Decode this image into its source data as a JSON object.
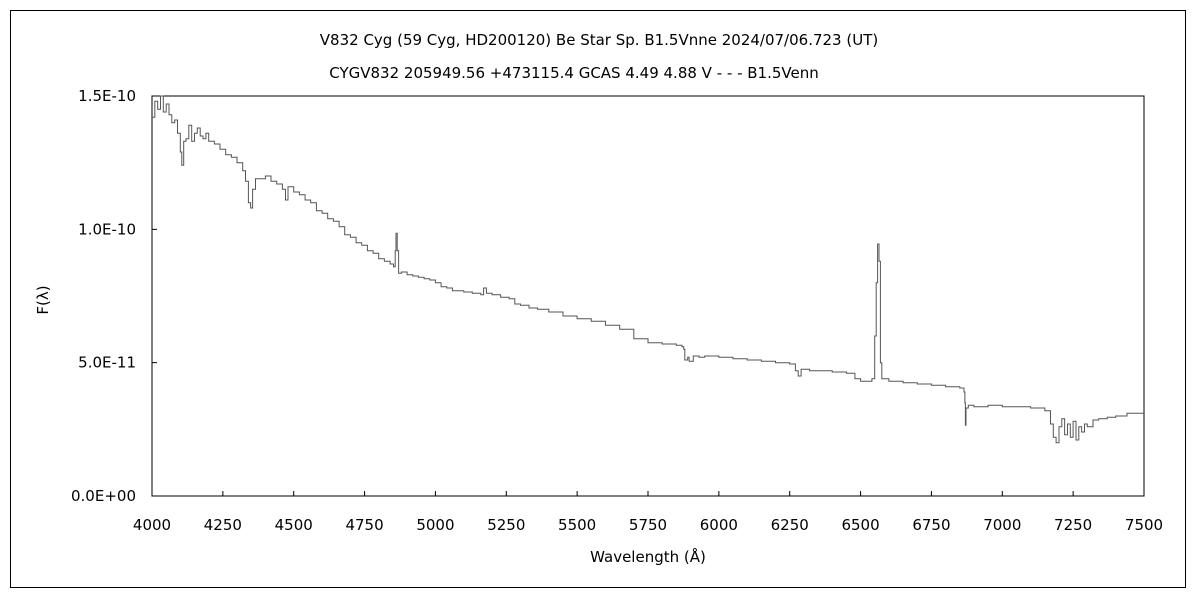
{
  "chart_data": {
    "type": "line",
    "title": "V832 Cyg (59 Cyg, HD200120)    Be Star    Sp. B1.5Vnne    2024/07/06.723 (UT)",
    "subtitle": "CYGV832 205949.56 +473115.4 GCAS 4.49 4.88 V - - - B1.5Venn",
    "xlabel": "Wavelength (Å)",
    "ylabel": "F(λ)",
    "xlim": [
      4000,
      7500
    ],
    "ylim": [
      0,
      1.5e-10
    ],
    "grid": false,
    "x_tick_labels": [
      "4000",
      "4250",
      "4500",
      "4750",
      "5000",
      "5250",
      "5500",
      "5750",
      "6000",
      "6250",
      "6500",
      "6750",
      "7000",
      "7250",
      "7500"
    ],
    "y_tick_labels": [
      "0.0E+00",
      "5.0E-11",
      "1.0E-10",
      "1.5E-10"
    ],
    "series_color": "#555555",
    "series": [
      {
        "points": [
          [
            4000,
            1.42e-10
          ],
          [
            4010,
            1.48e-10
          ],
          [
            4020,
            1.45e-10
          ],
          [
            4030,
            1.5e-10
          ],
          [
            4040,
            1.44e-10
          ],
          [
            4050,
            1.47e-10
          ],
          [
            4060,
            1.43e-10
          ],
          [
            4070,
            1.4e-10
          ],
          [
            4080,
            1.41e-10
          ],
          [
            4090,
            1.36e-10
          ],
          [
            4100,
            1.29e-10
          ],
          [
            4105,
            1.24e-10
          ],
          [
            4112,
            1.33e-10
          ],
          [
            4120,
            1.34e-10
          ],
          [
            4130,
            1.39e-10
          ],
          [
            4140,
            1.33e-10
          ],
          [
            4150,
            1.36e-10
          ],
          [
            4160,
            1.38e-10
          ],
          [
            4170,
            1.35e-10
          ],
          [
            4180,
            1.34e-10
          ],
          [
            4190,
            1.36e-10
          ],
          [
            4200,
            1.33e-10
          ],
          [
            4220,
            1.32e-10
          ],
          [
            4240,
            1.3e-10
          ],
          [
            4260,
            1.28e-10
          ],
          [
            4280,
            1.27e-10
          ],
          [
            4300,
            1.25e-10
          ],
          [
            4320,
            1.22e-10
          ],
          [
            4330,
            1.18e-10
          ],
          [
            4340,
            1.1e-10
          ],
          [
            4348,
            1.08e-10
          ],
          [
            4355,
            1.15e-10
          ],
          [
            4365,
            1.19e-10
          ],
          [
            4380,
            1.19e-10
          ],
          [
            4400,
            1.2e-10
          ],
          [
            4420,
            1.18e-10
          ],
          [
            4440,
            1.17e-10
          ],
          [
            4460,
            1.15e-10
          ],
          [
            4471,
            1.11e-10
          ],
          [
            4480,
            1.16e-10
          ],
          [
            4500,
            1.14e-10
          ],
          [
            4520,
            1.13e-10
          ],
          [
            4540,
            1.11e-10
          ],
          [
            4560,
            1.1e-10
          ],
          [
            4580,
            1.07e-10
          ],
          [
            4600,
            1.06e-10
          ],
          [
            4620,
            1.04e-10
          ],
          [
            4640,
            1.03e-10
          ],
          [
            4660,
            1.01e-10
          ],
          [
            4680,
            9.8e-11
          ],
          [
            4700,
            9.7e-11
          ],
          [
            4720,
            9.5e-11
          ],
          [
            4740,
            9.4e-11
          ],
          [
            4760,
            9.2e-11
          ],
          [
            4780,
            9.1e-11
          ],
          [
            4800,
            8.9e-11
          ],
          [
            4820,
            8.8e-11
          ],
          [
            4840,
            8.7e-11
          ],
          [
            4852,
            8.6e-11
          ],
          [
            4858,
            9.2e-11
          ],
          [
            4861,
            9.85e-11
          ],
          [
            4865,
            9.2e-11
          ],
          [
            4870,
            8.35e-11
          ],
          [
            4880,
            8.4e-11
          ],
          [
            4900,
            8.3e-11
          ],
          [
            4920,
            8.25e-11
          ],
          [
            4940,
            8.2e-11
          ],
          [
            4960,
            8.15e-11
          ],
          [
            4980,
            8.1e-11
          ],
          [
            5000,
            8e-11
          ],
          [
            5020,
            7.85e-11
          ],
          [
            5040,
            7.8e-11
          ],
          [
            5060,
            7.7e-11
          ],
          [
            5080,
            7.7e-11
          ],
          [
            5100,
            7.65e-11
          ],
          [
            5130,
            7.6e-11
          ],
          [
            5160,
            7.55e-11
          ],
          [
            5170,
            7.8e-11
          ],
          [
            5180,
            7.6e-11
          ],
          [
            5200,
            7.55e-11
          ],
          [
            5230,
            7.45e-11
          ],
          [
            5260,
            7.4e-11
          ],
          [
            5280,
            7.2e-11
          ],
          [
            5300,
            7.15e-11
          ],
          [
            5330,
            7.05e-11
          ],
          [
            5360,
            7e-11
          ],
          [
            5400,
            6.9e-11
          ],
          [
            5450,
            6.75e-11
          ],
          [
            5500,
            6.65e-11
          ],
          [
            5550,
            6.55e-11
          ],
          [
            5600,
            6.4e-11
          ],
          [
            5650,
            6.25e-11
          ],
          [
            5700,
            5.9e-11
          ],
          [
            5750,
            5.75e-11
          ],
          [
            5800,
            5.7e-11
          ],
          [
            5850,
            5.65e-11
          ],
          [
            5870,
            5.6e-11
          ],
          [
            5876,
            5.5e-11
          ],
          [
            5880,
            5.1e-11
          ],
          [
            5890,
            5.2e-11
          ],
          [
            5895,
            5.05e-11
          ],
          [
            5910,
            5.25e-11
          ],
          [
            5930,
            5.2e-11
          ],
          [
            5950,
            5.25e-11
          ],
          [
            6000,
            5.2e-11
          ],
          [
            6050,
            5.15e-11
          ],
          [
            6100,
            5.1e-11
          ],
          [
            6150,
            5.05e-11
          ],
          [
            6200,
            5e-11
          ],
          [
            6250,
            4.95e-11
          ],
          [
            6270,
            4.7e-11
          ],
          [
            6280,
            4.5e-11
          ],
          [
            6290,
            4.75e-11
          ],
          [
            6320,
            4.7e-11
          ],
          [
            6350,
            4.7e-11
          ],
          [
            6400,
            4.65e-11
          ],
          [
            6450,
            4.6e-11
          ],
          [
            6480,
            4.4e-11
          ],
          [
            6500,
            4.3e-11
          ],
          [
            6520,
            4.3e-11
          ],
          [
            6540,
            4.4e-11
          ],
          [
            6550,
            6e-11
          ],
          [
            6555,
            8e-11
          ],
          [
            6560,
            9.45e-11
          ],
          [
            6565,
            8.8e-11
          ],
          [
            6570,
            5e-11
          ],
          [
            6575,
            4.4e-11
          ],
          [
            6600,
            4.3e-11
          ],
          [
            6650,
            4.25e-11
          ],
          [
            6700,
            4.2e-11
          ],
          [
            6750,
            4.15e-11
          ],
          [
            6800,
            4.1e-11
          ],
          [
            6850,
            4.05e-11
          ],
          [
            6865,
            3.9e-11
          ],
          [
            6868,
            3.5e-11
          ],
          [
            6870,
            2.65e-11
          ],
          [
            6872,
            3.3e-11
          ],
          [
            6880,
            3.4e-11
          ],
          [
            6900,
            3.35e-11
          ],
          [
            6950,
            3.4e-11
          ],
          [
            7000,
            3.35e-11
          ],
          [
            7050,
            3.35e-11
          ],
          [
            7100,
            3.3e-11
          ],
          [
            7150,
            3.2e-11
          ],
          [
            7170,
            2.7e-11
          ],
          [
            7180,
            2.2e-11
          ],
          [
            7190,
            2e-11
          ],
          [
            7200,
            2.6e-11
          ],
          [
            7210,
            2.9e-11
          ],
          [
            7220,
            2.3e-11
          ],
          [
            7230,
            2.7e-11
          ],
          [
            7240,
            2.2e-11
          ],
          [
            7250,
            2.8e-11
          ],
          [
            7260,
            2.1e-11
          ],
          [
            7270,
            2.6e-11
          ],
          [
            7280,
            2.4e-11
          ],
          [
            7290,
            2.7e-11
          ],
          [
            7300,
            2.6e-11
          ],
          [
            7320,
            2.85e-11
          ],
          [
            7340,
            2.9e-11
          ],
          [
            7370,
            2.95e-11
          ],
          [
            7400,
            3e-11
          ],
          [
            7440,
            3.1e-11
          ],
          [
            7470,
            3.1e-11
          ],
          [
            7500,
            3.1e-11
          ]
        ]
      }
    ]
  }
}
